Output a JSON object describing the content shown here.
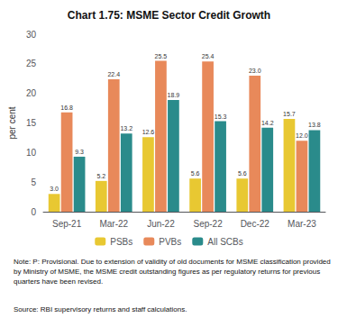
{
  "chart_data": {
    "type": "bar",
    "title": "Chart 1.75: MSME Sector Credit Growth",
    "categories": [
      "Sep-21",
      "Mar-22",
      "Jun-22",
      "Sep-22",
      "Dec-22",
      "Mar-23"
    ],
    "series": [
      {
        "name": "PSBs",
        "color": "#e8c832",
        "values": [
          3.0,
          5.2,
          12.6,
          5.6,
          5.6,
          15.7
        ],
        "value_labels": [
          "3.0",
          "5.2",
          "12.6",
          "5.6",
          "5.6",
          "15.7"
        ]
      },
      {
        "name": "PVBs",
        "color": "#e8895a",
        "values": [
          16.8,
          22.4,
          25.5,
          25.4,
          23.0,
          12.0
        ],
        "value_labels": [
          "16.8",
          "22.4",
          "25.5",
          "25.4",
          "23.0",
          "12.0"
        ]
      },
      {
        "name": "All SCBs",
        "color": "#2a8b8b",
        "values": [
          9.3,
          13.2,
          18.9,
          15.3,
          14.2,
          13.8
        ],
        "value_labels": [
          "9.3",
          "13.2",
          "18.9",
          "15.3",
          "14.2",
          "13.8"
        ]
      }
    ],
    "ylabel": "per cent",
    "ylim": [
      0,
      30
    ],
    "yticks": [
      0,
      5,
      10,
      15,
      20,
      25,
      30
    ],
    "grid": false,
    "legend": "bottom",
    "data_labels": true,
    "annotations": [
      "Note: P: Provisional. Due to extension of validity of old documents for MSME classification provided by Ministry of MSME, the MSME credit outstanding figures as per regulatory returns for previous quarters have been revised.",
      "Source: RBI supervisory returns and staff calculations."
    ]
  }
}
